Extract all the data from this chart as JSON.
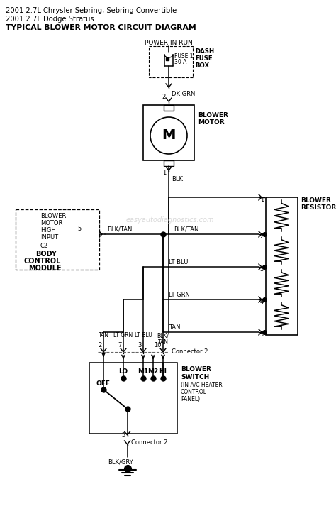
{
  "title_line1": "2001 2.7L Chrysler Sebring, Sebring Convertible",
  "title_line2": "2001 2.7L Dodge Stratus",
  "title_line3": "TYPICAL BLOWER MOTOR CIRCUIT DIAGRAM",
  "watermark": "easyautodiagnostics.com",
  "bg_color": "#ffffff",
  "fig_width": 4.74,
  "fig_height": 7.13,
  "dpi": 100
}
